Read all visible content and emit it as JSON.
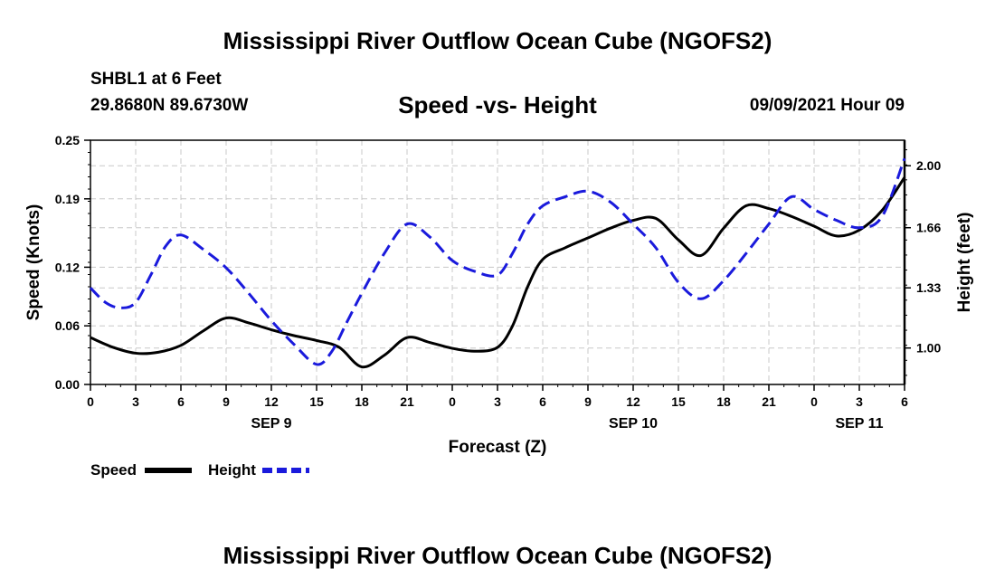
{
  "header": {
    "title": "Mississippi River Outflow Ocean Cube (NGOFS2)",
    "station": "SHBL1 at 6 Feet",
    "coordinates": "29.8680N  89.6730W",
    "subtitle": "Speed -vs- Height",
    "datetime": "09/09/2021 Hour 09"
  },
  "footer": {
    "title": "Mississippi River Outflow Ocean Cube (NGOFS2)"
  },
  "chart_data": {
    "type": "line",
    "title": "Speed -vs- Height",
    "xlabel": "Forecast (Z)",
    "ylabel": "Speed (Knots)",
    "y2label": "Height (feet)",
    "xlim": [
      0,
      54
    ],
    "ylim": [
      0,
      0.25
    ],
    "y2lim": [
      0.8,
      2.14
    ],
    "grid": true,
    "x_tick_positions": [
      0,
      3,
      6,
      9,
      12,
      15,
      18,
      21,
      24,
      27,
      30,
      33,
      36,
      39,
      42,
      45,
      48,
      51,
      54
    ],
    "x_tick_labels": [
      "0",
      "3",
      "6",
      "9",
      "12",
      "15",
      "18",
      "21",
      "0",
      "3",
      "6",
      "9",
      "12",
      "15",
      "18",
      "21",
      "0",
      "3",
      "6"
    ],
    "date_labels": [
      {
        "x": 12,
        "label": "SEP 9"
      },
      {
        "x": 36,
        "label": "SEP 10"
      },
      {
        "x": 51,
        "label": "SEP 11"
      }
    ],
    "y_ticks": [
      0,
      0.06,
      0.12,
      0.19,
      0.25
    ],
    "y_tick_labels": [
      "0.00",
      "0.06",
      "0.12",
      "0.19",
      "0.25"
    ],
    "y2_ticks": [
      1.0,
      1.33,
      1.66,
      2.0
    ],
    "y2_tick_labels": [
      "1.00",
      "1.33",
      "1.66",
      "2.00"
    ],
    "legend_position": "bottom-left",
    "series": [
      {
        "name": "Speed",
        "axis": "left",
        "color": "#000000",
        "style": "solid",
        "x": [
          0,
          1.5,
          3,
          4.5,
          6,
          7.5,
          9,
          10.5,
          12,
          13.5,
          15,
          16.5,
          18,
          19.5,
          21,
          22.5,
          24,
          25.5,
          27,
          28,
          29,
          30,
          31.5,
          33,
          34.5,
          36,
          37.5,
          39,
          40.5,
          42,
          43.5,
          45,
          46.5,
          48,
          49.5,
          51,
          52.5,
          54
        ],
        "values": [
          0.048,
          0.038,
          0.032,
          0.033,
          0.04,
          0.055,
          0.068,
          0.063,
          0.056,
          0.05,
          0.045,
          0.038,
          0.018,
          0.03,
          0.048,
          0.043,
          0.037,
          0.034,
          0.038,
          0.06,
          0.1,
          0.128,
          0.14,
          0.15,
          0.16,
          0.168,
          0.17,
          0.148,
          0.132,
          0.16,
          0.183,
          0.18,
          0.172,
          0.162,
          0.152,
          0.158,
          0.178,
          0.212
        ]
      },
      {
        "name": "Height",
        "axis": "right",
        "color": "#1a1adc",
        "style": "dashed",
        "x": [
          0,
          1,
          2,
          3,
          4,
          5,
          6,
          7.5,
          9,
          10.5,
          12,
          13.5,
          15,
          16,
          17,
          18,
          19.5,
          21,
          22.5,
          24,
          25.5,
          27,
          28,
          29,
          30,
          31.5,
          33,
          34.5,
          36,
          37.5,
          39,
          40.5,
          42,
          43.5,
          45,
          46.5,
          48,
          49.5,
          51,
          52.5,
          54
        ],
        "values": [
          1.33,
          1.25,
          1.22,
          1.25,
          1.4,
          1.56,
          1.62,
          1.54,
          1.44,
          1.3,
          1.15,
          1.02,
          0.91,
          0.98,
          1.14,
          1.3,
          1.52,
          1.68,
          1.61,
          1.48,
          1.42,
          1.4,
          1.52,
          1.68,
          1.78,
          1.83,
          1.86,
          1.8,
          1.68,
          1.55,
          1.36,
          1.27,
          1.37,
          1.52,
          1.68,
          1.83,
          1.76,
          1.7,
          1.66,
          1.72,
          2.04
        ]
      }
    ]
  }
}
